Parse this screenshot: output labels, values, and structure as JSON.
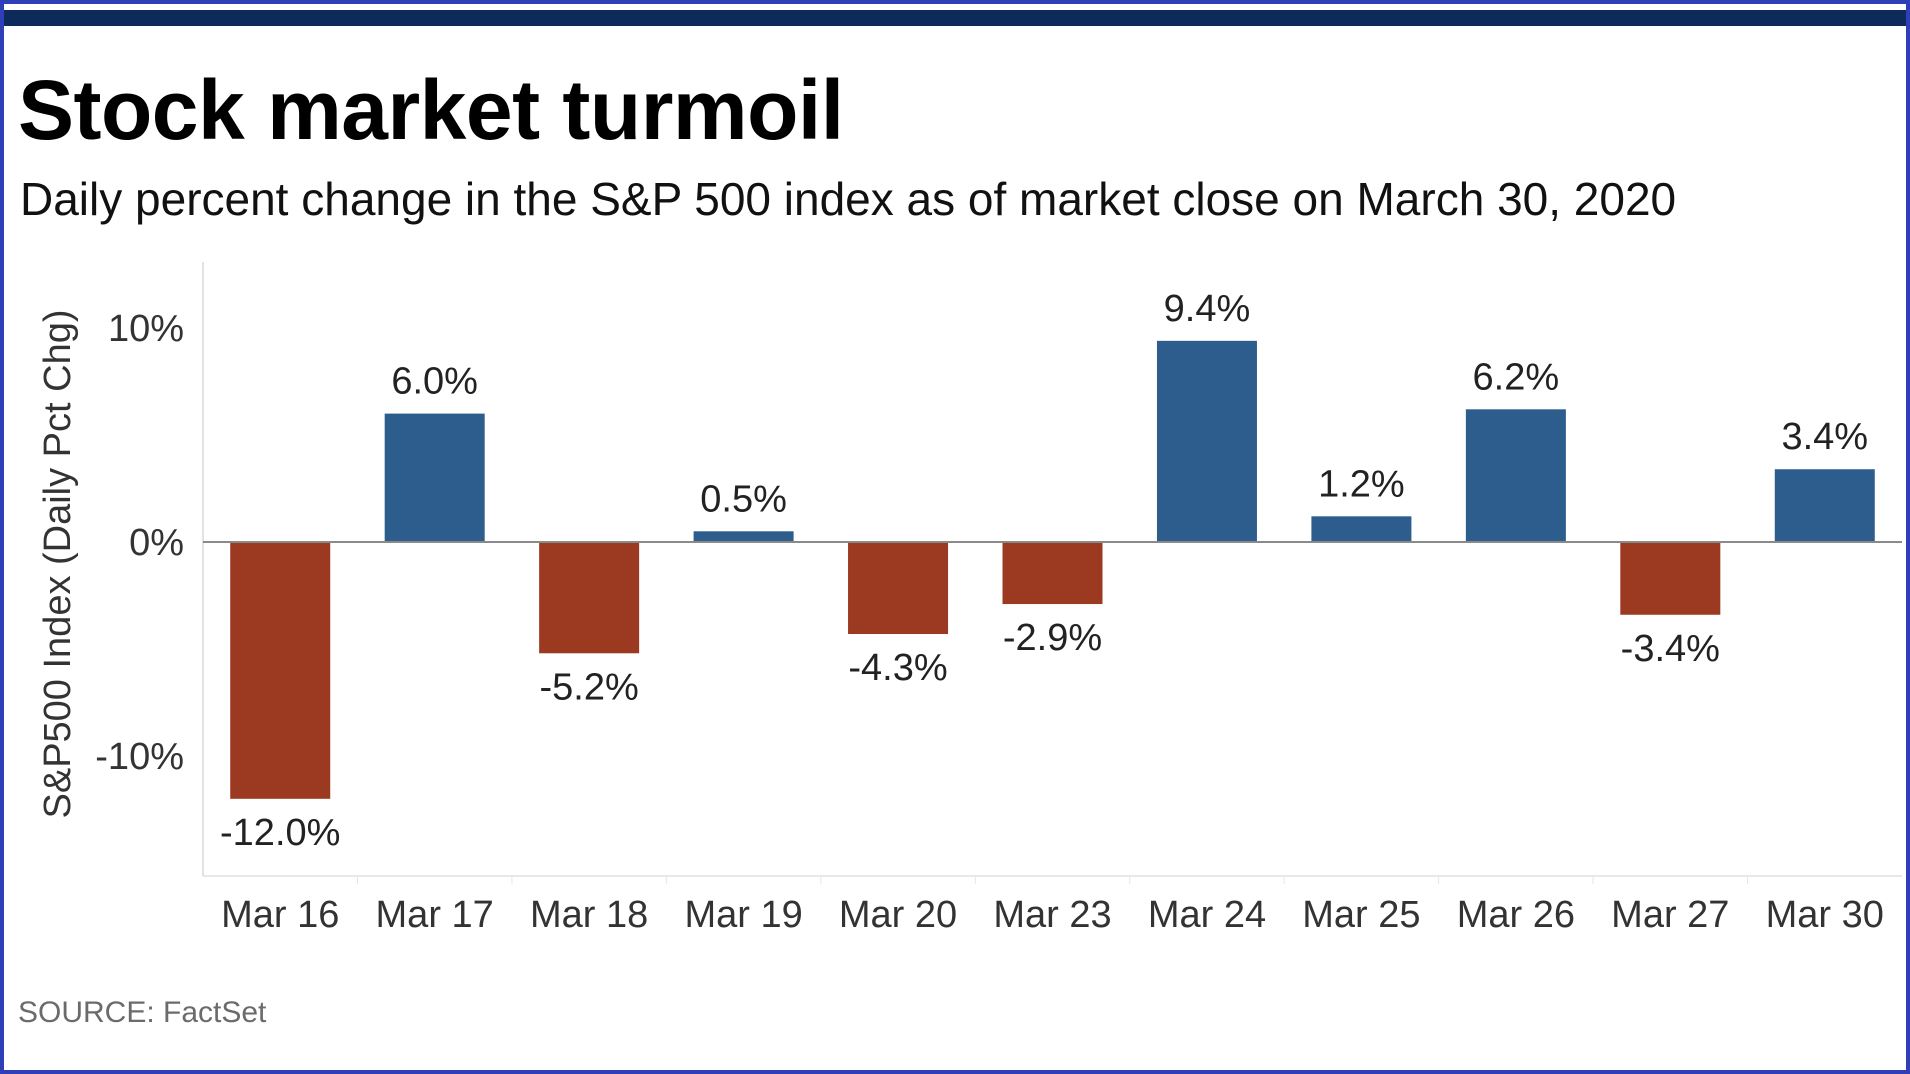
{
  "header": {
    "title": "Stock market turmoil",
    "subtitle": "Daily percent change in the S&P 500 index as of market close on March 30, 2020"
  },
  "footer": {
    "source": "SOURCE: FactSet"
  },
  "colors": {
    "positive": "#2c5d8c",
    "negative": "#9c3a21",
    "header_bar": "#0e2a5a",
    "border": "#2f3fb8"
  },
  "chart_data": {
    "type": "bar",
    "title": "Stock market turmoil",
    "subtitle": "Daily percent change in the S&P 500 index as of market close on March 30, 2020",
    "xlabel": "",
    "ylabel": "S&P500 Index (Daily Pct Chg)",
    "categories": [
      "Mar 16",
      "Mar 17",
      "Mar 18",
      "Mar 19",
      "Mar 20",
      "Mar 23",
      "Mar 24",
      "Mar 25",
      "Mar 26",
      "Mar 27",
      "Mar 30"
    ],
    "values": [
      -12.0,
      6.0,
      -5.2,
      0.5,
      -4.3,
      -2.9,
      9.4,
      1.2,
      6.2,
      -3.4,
      3.4
    ],
    "data_labels": [
      "-12.0%",
      "6.0%",
      "-5.2%",
      "0.5%",
      "-4.3%",
      "-2.9%",
      "9.4%",
      "1.2%",
      "6.2%",
      "-3.4%",
      "3.4%"
    ],
    "yticks": [
      10,
      0,
      -10
    ],
    "ytick_labels": [
      "10%",
      "0%",
      "-10%"
    ],
    "ylim": [
      -15.6,
      13.0
    ],
    "grid": false
  }
}
